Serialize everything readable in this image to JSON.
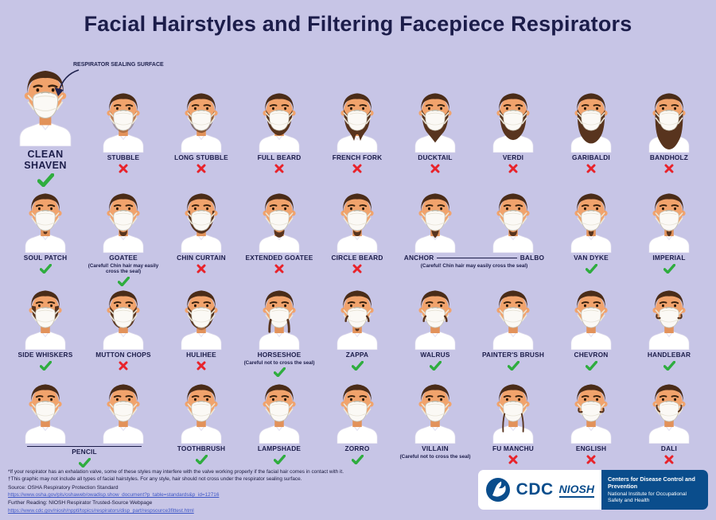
{
  "title": "Facial Hairstyles and Filtering Facepiece Respirators",
  "annotation": "RESPIRATOR SEALING SURFACE",
  "rows": [
    {
      "cells": [
        {
          "kind": "featured",
          "name": "CLEAN SHAVEN",
          "verdict": "yes"
        },
        {
          "kind": "single",
          "name": "STUBBLE",
          "verdict": "no"
        },
        {
          "kind": "single",
          "name": "LONG STUBBLE",
          "verdict": "no"
        },
        {
          "kind": "single",
          "name": "FULL BEARD",
          "verdict": "no"
        },
        {
          "kind": "single",
          "name": "FRENCH FORK",
          "verdict": "no"
        },
        {
          "kind": "single",
          "name": "DUCKTAIL",
          "verdict": "no"
        },
        {
          "kind": "single",
          "name": "VERDI",
          "verdict": "no"
        },
        {
          "kind": "single",
          "name": "GARIBALDI",
          "verdict": "no"
        },
        {
          "kind": "single",
          "name": "BANDHOLZ",
          "verdict": "no"
        }
      ]
    },
    {
      "cells": [
        {
          "kind": "single",
          "name": "SOUL PATCH",
          "verdict": "yes"
        },
        {
          "kind": "single",
          "name": "GOATEE",
          "verdict": "yes",
          "note": "(Careful! Chin hair may easily cross the seal)"
        },
        {
          "kind": "single",
          "name": "CHIN CURTAIN",
          "verdict": "no"
        },
        {
          "kind": "single",
          "name": "EXTENDED GOATEE",
          "verdict": "no"
        },
        {
          "kind": "single",
          "name": "CIRCLE BEARD",
          "verdict": "no"
        },
        {
          "kind": "pair",
          "names": [
            "ANCHOR",
            "BALBO"
          ],
          "note": "(Careful! Chin hair may easily cross the seal)"
        },
        {
          "kind": "single",
          "name": "VAN DYKE",
          "verdict": "yes"
        },
        {
          "kind": "single",
          "name": "IMPERIAL",
          "verdict": "yes"
        }
      ]
    },
    {
      "cells": [
        {
          "kind": "single",
          "name": "SIDE WHISKERS",
          "verdict": "yes"
        },
        {
          "kind": "single",
          "name": "MUTTON CHOPS",
          "verdict": "no"
        },
        {
          "kind": "single",
          "name": "HULIHEE",
          "verdict": "no"
        },
        {
          "kind": "single",
          "name": "HORSESHOE",
          "verdict": "yes",
          "note": "(Careful not to cross the seal)"
        },
        {
          "kind": "single",
          "name": "ZAPPA",
          "verdict": "yes"
        },
        {
          "kind": "single",
          "name": "WALRUS",
          "verdict": "yes"
        },
        {
          "kind": "single",
          "name": "PAINTER'S BRUSH",
          "verdict": "yes"
        },
        {
          "kind": "single",
          "name": "CHEVRON",
          "verdict": "yes"
        },
        {
          "kind": "single",
          "name": "HANDLEBAR",
          "verdict": "yes"
        }
      ]
    },
    {
      "cells": [
        {
          "kind": "pairlabel",
          "name": "PENCIL",
          "verdict": "yes"
        },
        {
          "kind": "single",
          "name": "TOOTHBRUSH",
          "verdict": "yes"
        },
        {
          "kind": "single",
          "name": "LAMPSHADE",
          "verdict": "yes"
        },
        {
          "kind": "single",
          "name": "ZORRO",
          "verdict": "yes"
        },
        {
          "kind": "single",
          "name": "VILLAIN",
          "note": "(Careful not to cross the seal)"
        },
        {
          "kind": "single",
          "name": "FU MANCHU",
          "verdict": "no"
        },
        {
          "kind": "single",
          "name": "ENGLISH",
          "verdict": "no"
        },
        {
          "kind": "single",
          "name": "DALI",
          "verdict": "no"
        }
      ]
    }
  ],
  "footnotes": [
    "*If your respirator has an exhalation valve, some of these styles may interfere with the valve working properly if the facial hair comes in contact with it.",
    "†This graphic may not include all types of facial hairstyles. For any style, hair should not cross under the respirator sealing surface."
  ],
  "source_label": "Source: OSHA Respiratory Protection Standard",
  "source_url": "https://www.osha.gov/pls/oshaweb/owadisp.show_document?p_table=standards&p_id=12716",
  "further_label": "Further Reading: NIOSH Respirator Trusted-Source Webpage",
  "further_url": "https://www.cdc.gov/niosh/npptl/topics/respirators/disp_part/respsource3fittest.html",
  "logos": {
    "cdc": "CDC",
    "niosh": "NIOSH",
    "agency": "Centers for Disease Control and Prevention",
    "institute": "National Institute for Occupational Safety and Health"
  },
  "colors": {
    "background": "#c7c5e6",
    "title_navy": "#1c1d4a",
    "check_green": "#2fad3f",
    "cross_red": "#e8232b",
    "link_blue": "#3c55c5",
    "brand_blue": "#0a4d8c"
  }
}
